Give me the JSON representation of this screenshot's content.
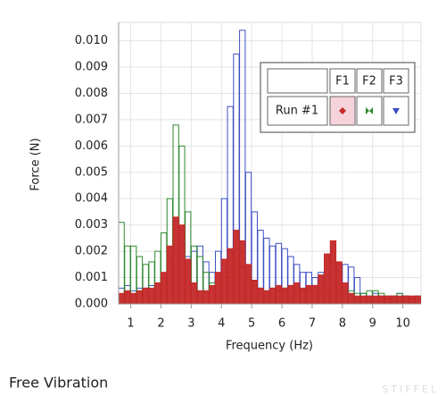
{
  "chart_data": {
    "type": "bar",
    "ylabel": "Force (N)",
    "xlabel": "Frequency (Hz)",
    "x": [
      0.6,
      0.8,
      1.0,
      1.2,
      1.4,
      1.6,
      1.8,
      2.0,
      2.2,
      2.4,
      2.6,
      2.8,
      3.0,
      3.2,
      3.4,
      3.6,
      3.8,
      4.0,
      4.2,
      4.4,
      4.6,
      4.8,
      5.0,
      5.2,
      5.4,
      5.6,
      5.8,
      6.0,
      6.2,
      6.4,
      6.6,
      6.8,
      7.0,
      7.2,
      7.4,
      7.6,
      7.8,
      8.0,
      8.2,
      8.4,
      8.6,
      8.8,
      9.0,
      9.2,
      9.4,
      9.6,
      9.8,
      10.0,
      10.2,
      10.4
    ],
    "series": [
      {
        "name": "F3",
        "color": "#3c4ec4",
        "values": [
          0.0006,
          0.0007,
          0.0005,
          0.0006,
          0.0006,
          0.0007,
          0.0008,
          0.001,
          0.0016,
          0.0025,
          0.0022,
          0.0018,
          0.002,
          0.0022,
          0.0016,
          0.0012,
          0.002,
          0.004,
          0.0075,
          0.0095,
          0.0104,
          0.005,
          0.0035,
          0.0028,
          0.0025,
          0.0022,
          0.0023,
          0.0021,
          0.0018,
          0.0015,
          0.0012,
          0.0012,
          0.001,
          0.0012,
          0.0018,
          0.0015,
          0.0015,
          0.0015,
          0.0014,
          0.001,
          0.0004,
          0.0003,
          0.0004,
          0.0003,
          0.0002,
          0.0003,
          0.0004,
          0.0003,
          0.0002,
          0.0003
        ]
      },
      {
        "name": "F2",
        "color": "#2e8a2e",
        "values": [
          0.0031,
          0.0022,
          0.0022,
          0.0018,
          0.0015,
          0.0016,
          0.002,
          0.0027,
          0.004,
          0.0068,
          0.006,
          0.0035,
          0.0022,
          0.0018,
          0.0012,
          0.0008,
          0.0008,
          0.001,
          0.0012,
          0.0015,
          0.0014,
          0.001,
          0.0007,
          0.0006,
          0.0005,
          0.0006,
          0.0005,
          0.0006,
          0.0007,
          0.0006,
          0.0005,
          0.0006,
          0.0007,
          0.0006,
          0.0005,
          0.0006,
          0.0005,
          0.0004,
          0.0005,
          0.0004,
          0.0004,
          0.0005,
          0.0005,
          0.0004,
          0.0003,
          0.0003,
          0.0004,
          0.0003,
          0.0002,
          0.0003
        ]
      },
      {
        "name": "F1",
        "color": "#c42828",
        "values": [
          0.0004,
          0.0005,
          0.0004,
          0.0005,
          0.0006,
          0.0006,
          0.0008,
          0.0012,
          0.0022,
          0.0033,
          0.003,
          0.0017,
          0.0008,
          0.0005,
          0.0005,
          0.0007,
          0.0012,
          0.0017,
          0.0021,
          0.0028,
          0.0024,
          0.0015,
          0.0009,
          0.0006,
          0.0005,
          0.0006,
          0.0007,
          0.0006,
          0.0007,
          0.0008,
          0.0006,
          0.0007,
          0.0007,
          0.0011,
          0.0019,
          0.0024,
          0.0016,
          0.0008,
          0.0004,
          0.0003,
          0.0003,
          0.0003,
          0.0003,
          0.0003,
          0.0003,
          0.0003,
          0.0003,
          0.0003,
          0.0003,
          0.0003
        ]
      }
    ],
    "xlim": [
      0.6,
      10.6
    ],
    "xticks": [
      1,
      2,
      3,
      4,
      5,
      6,
      7,
      8,
      9,
      10
    ],
    "ylim": [
      0,
      0.0107
    ],
    "yticks": [
      {
        "value": 0,
        "label": "0.000"
      },
      {
        "value": 0.001,
        "label": "0.001"
      },
      {
        "value": 0.002,
        "label": "0.002"
      },
      {
        "value": 0.003,
        "label": "0.003"
      },
      {
        "value": 0.004,
        "label": "0.004"
      },
      {
        "value": 0.005,
        "label": "0.005"
      },
      {
        "value": 0.006,
        "label": "0.006"
      },
      {
        "value": 0.007,
        "label": "0.007"
      },
      {
        "value": 0.008,
        "label": "0.008"
      },
      {
        "value": 0.009,
        "label": "0.009"
      },
      {
        "value": 0.01,
        "label": "0.010"
      }
    ],
    "grid": true,
    "legend_row": "Run #1"
  },
  "footer": {
    "title": "Free Vibration",
    "watermark": "STIFFEL"
  }
}
